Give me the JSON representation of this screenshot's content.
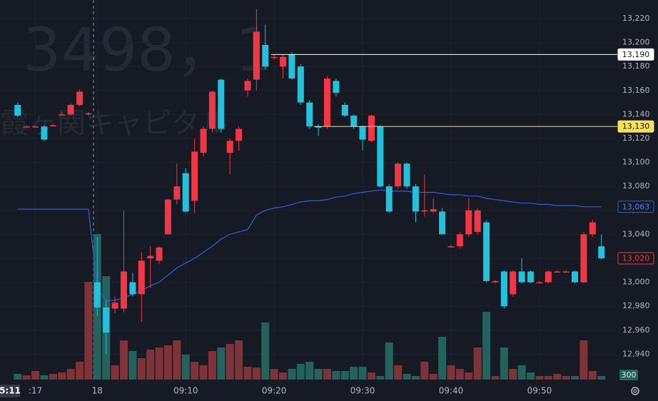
{
  "chart_data": {
    "type": "candlestick",
    "watermark": {
      "symbol": "3498，1",
      "name": "霞ヶ関キャピタル"
    },
    "x": [
      -9,
      -8,
      -7,
      -6,
      -5,
      -4,
      -3,
      -2,
      -1,
      0,
      1,
      2,
      3,
      4,
      5,
      6,
      7,
      8,
      9,
      10,
      11,
      12,
      13,
      14,
      15,
      16,
      17,
      18,
      19,
      20,
      21,
      22,
      23,
      24,
      25,
      26,
      27,
      28,
      29,
      30,
      31,
      32,
      33,
      34,
      35,
      36,
      37,
      38,
      39,
      40,
      41,
      42,
      43,
      44,
      45,
      46,
      47,
      48,
      49,
      50,
      51,
      52,
      53,
      54,
      55,
      56,
      57
    ],
    "xlim": [
      -11,
      58.8
    ],
    "xticks": [
      {
        "value": -7,
        "label": ":17"
      },
      {
        "value": 0,
        "label": "18"
      },
      {
        "value": 10,
        "label": "09:10"
      },
      {
        "value": 20,
        "label": "09:20"
      },
      {
        "value": 30,
        "label": "09:30"
      },
      {
        "value": 40,
        "label": "09:40"
      },
      {
        "value": 50,
        "label": "09:50"
      }
    ],
    "crosshair_time": "5:11",
    "ylim": [
      12920,
      13235.5
    ],
    "yticks": [
      {
        "value": 12940,
        "label": "12,940"
      },
      {
        "value": 12960,
        "label": "12,960"
      },
      {
        "value": 12980,
        "label": "12,980"
      },
      {
        "value": 13000,
        "label": "13,000"
      },
      {
        "value": 13020,
        "label": "13,020"
      },
      {
        "value": 13040,
        "label": "13,040"
      },
      {
        "value": 13060,
        "label": "13,060"
      },
      {
        "value": 13080,
        "label": "13,080"
      },
      {
        "value": 13100,
        "label": "13,100"
      },
      {
        "value": 13120,
        "label": "13,120"
      },
      {
        "value": 13140,
        "label": "13,140"
      },
      {
        "value": 13160,
        "label": "13,160"
      },
      {
        "value": 13180,
        "label": "13,180"
      },
      {
        "value": 13200,
        "label": "13,200"
      },
      {
        "value": 13220,
        "label": "13,220"
      }
    ],
    "grid": true,
    "up_color": "#f23645",
    "down_color": "#22c1dc",
    "candles": {
      "open": [
        13148,
        13130,
        13130,
        13130,
        13131,
        13140,
        13140,
        13148,
        13141,
        13000,
        12979,
        12978,
        12978,
        13000,
        12990,
        13020,
        13018,
        13040,
        13069,
        13091,
        13068,
        13108,
        13128,
        13169,
        13108,
        13118,
        13160,
        13169,
        13198,
        13188,
        13180,
        13190,
        13180,
        13150,
        13130,
        13130,
        13168,
        13148,
        13139,
        13130,
        13118,
        13130,
        13080,
        13080,
        13099,
        13080,
        13060,
        13059,
        13059,
        13030,
        13030,
        13040,
        13042,
        13050,
        13000,
        13009,
        12990,
        13009,
        13009,
        13000,
        13000,
        13009,
        13009,
        13009,
        13000,
        13040,
        13030
      ],
      "high": [
        13150,
        13131,
        13131,
        13131,
        13132,
        13142,
        13149,
        13161,
        13142,
        13038,
        12985,
        12988,
        13060,
        13008,
        13025,
        13030,
        13030,
        13070,
        13099,
        13095,
        13120,
        13130,
        13160,
        13170,
        13120,
        13130,
        13170,
        13228,
        13215,
        13190,
        13190,
        13192,
        13182,
        13152,
        13132,
        13172,
        13170,
        13150,
        13140,
        13131,
        13140,
        13131,
        13082,
        13100,
        13100,
        13082,
        13090,
        13070,
        13062,
        13031,
        13042,
        13070,
        13062,
        13052,
        13002,
        13010,
        13010,
        13020,
        13010,
        13001,
        13010,
        13010,
        13010,
        13010,
        13042,
        13052,
        13040
      ],
      "low": [
        13138,
        13129,
        13129,
        13118,
        13130,
        13139,
        13139,
        13147,
        13139,
        12972,
        12940,
        12974,
        12975,
        12988,
        12967,
        12995,
        13015,
        13040,
        13065,
        13058,
        13058,
        13105,
        13125,
        13125,
        13090,
        13110,
        13155,
        13160,
        13178,
        13186,
        13170,
        13169,
        13148,
        13128,
        13122,
        13128,
        13155,
        13138,
        13128,
        13110,
        13117,
        13079,
        13058,
        13078,
        13078,
        13050,
        13055,
        13058,
        13040,
        13029,
        13028,
        13038,
        13040,
        13000,
        12999,
        12978,
        12988,
        12999,
        12999,
        12999,
        12999,
        13008,
        13008,
        12999,
        12999,
        13038,
        13019
      ],
      "close": [
        13139,
        13130,
        13130,
        13119,
        13131,
        13140,
        13148,
        13159,
        13141,
        12979,
        12958,
        12983,
        13009,
        12990,
        13018,
        13022,
        13029,
        13069,
        13080,
        13059,
        13109,
        13128,
        13159,
        13128,
        13118,
        13128,
        13168,
        13209,
        13180,
        13188,
        13188,
        13170,
        13150,
        13130,
        13129,
        13170,
        13158,
        13139,
        13130,
        13119,
        13139,
        13080,
        13059,
        13099,
        13080,
        13059,
        13060,
        13061,
        13040,
        13030,
        13040,
        13060,
        13060,
        13001,
        13001,
        12980,
        13009,
        13000,
        13000,
        13000,
        13009,
        13009,
        13009,
        13000,
        13040,
        13050,
        13020
      ]
    },
    "volume": [
      480,
      360,
      720,
      360,
      480,
      600,
      900,
      1500,
      8220,
      12240,
      8700,
      1200,
      3300,
      2400,
      1800,
      2520,
      2700,
      2880,
      3300,
      2100,
      1500,
      1200,
      2400,
      2700,
      3000,
      3300,
      1080,
      1020,
      4800,
      900,
      600,
      900,
      1320,
      1500,
      900,
      900,
      720,
      720,
      1080,
      1080,
      600,
      300,
      3120,
      1200,
      480,
      300,
      1500,
      480,
      3600,
      1200,
      900,
      600,
      2700,
      5700,
      300,
      2700,
      900,
      1200,
      600,
      300,
      300,
      480,
      300,
      300,
      3300,
      720,
      300
    ],
    "volume_lim": [
      0,
      13800
    ],
    "volume_up_color": "#7d3338",
    "volume_down_color": "#23625d",
    "last_volume": 300,
    "vwap": [
      13061,
      13061,
      13061,
      13061,
      13061,
      13061,
      13061,
      13061,
      13061,
      12995,
      12985,
      12985,
      12987,
      12990,
      12993,
      12997,
      13000,
      13006,
      13012,
      13016,
      13020,
      13025,
      13030,
      13036,
      13040,
      13042,
      13044,
      13056,
      13060,
      13062,
      13063,
      13065,
      13067,
      13068,
      13068,
      13069,
      13071,
      13072,
      13074,
      13075,
      13076,
      13077,
      13076,
      13076,
      13076,
      13075,
      13075,
      13075,
      13074,
      13073,
      13073,
      13072,
      13072,
      13070,
      13069,
      13068,
      13067,
      13066,
      13066,
      13065,
      13065,
      13064,
      13064,
      13064,
      13063,
      13063,
      13063
    ],
    "vwap_color": "#2f5fe0",
    "vwap_label": {
      "value": 13063,
      "label": "13,063"
    },
    "last_price": {
      "value": 13020,
      "label": "13,020"
    },
    "price_lines": [
      {
        "value": 13190,
        "label": "13,190",
        "color": "#ffffff"
      },
      {
        "value": 13130,
        "label": "13,130",
        "color": "#f5e15a"
      }
    ]
  }
}
